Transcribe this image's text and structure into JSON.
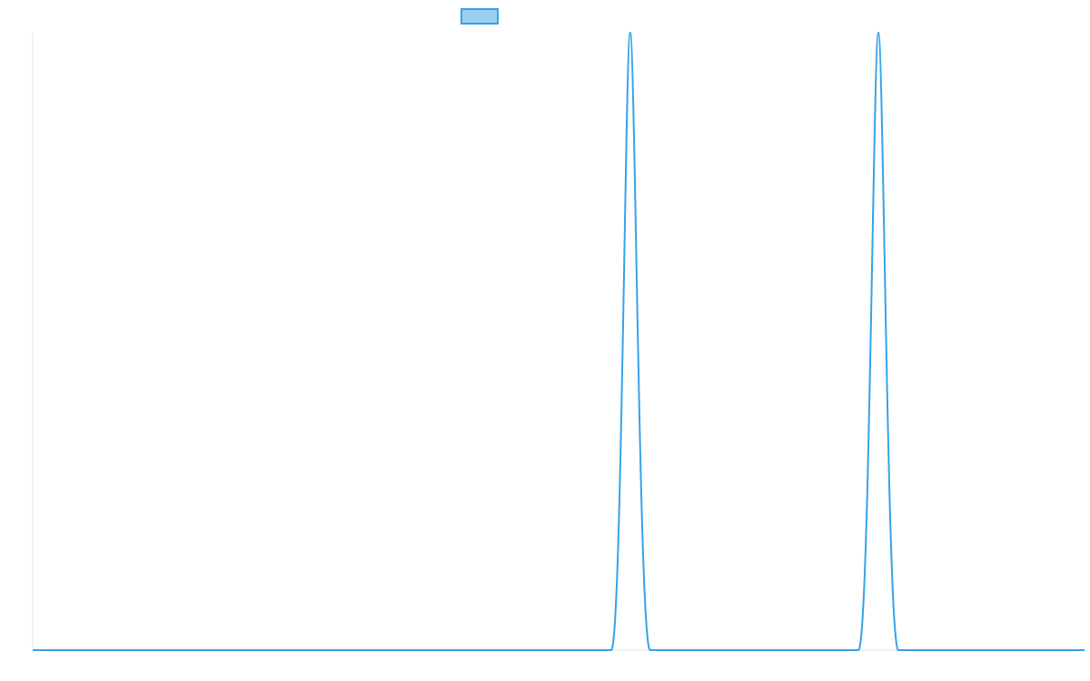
{
  "chart_data": {
    "type": "line",
    "title": "",
    "xlabel": "",
    "ylabel": "",
    "xlim": [
      0,
      1
    ],
    "ylim": [
      0,
      1
    ],
    "grid": false,
    "legend": {
      "placement": "top-center"
    },
    "series": [
      {
        "name": "",
        "color": "#36a2eb",
        "fill_color": "#9bd0f3",
        "x": [
          0,
          0.55,
          0.568,
          0.587,
          0.6,
          0.785,
          0.804,
          0.823,
          0.84,
          1
        ],
        "y": [
          0,
          0,
          1,
          0,
          0,
          0,
          1,
          0,
          0,
          0
        ]
      }
    ]
  }
}
